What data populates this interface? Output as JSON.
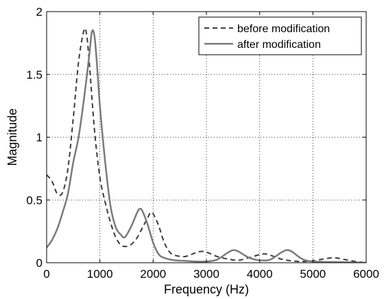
{
  "chart_data": {
    "type": "line",
    "title": "",
    "xlabel": "Frequency (Hz)",
    "ylabel": "Magnitude",
    "xlim": [
      0,
      6000
    ],
    "ylim": [
      0,
      2
    ],
    "xticks": [
      0,
      1000,
      2000,
      3000,
      4000,
      5000,
      6000
    ],
    "yticks": [
      0,
      0.5,
      1,
      1.5,
      2
    ],
    "xtick_labels": [
      "0",
      "1000",
      "2000",
      "3000",
      "4000",
      "5000",
      "6000"
    ],
    "ytick_labels": [
      "0",
      "0.5",
      "1",
      "1.5",
      "2"
    ],
    "grid": true,
    "legend_position": "top-right",
    "series": [
      {
        "name": "before modification",
        "style": "dashed",
        "color": "#3a3a3a",
        "points": [
          [
            0,
            0.7
          ],
          [
            100,
            0.65
          ],
          [
            200,
            0.55
          ],
          [
            300,
            0.56
          ],
          [
            400,
            0.75
          ],
          [
            500,
            1.15
          ],
          [
            600,
            1.6
          ],
          [
            700,
            1.85
          ],
          [
            750,
            1.82
          ],
          [
            800,
            1.6
          ],
          [
            900,
            1.05
          ],
          [
            1000,
            0.68
          ],
          [
            1100,
            0.48
          ],
          [
            1200,
            0.32
          ],
          [
            1300,
            0.2
          ],
          [
            1400,
            0.14
          ],
          [
            1500,
            0.13
          ],
          [
            1600,
            0.15
          ],
          [
            1700,
            0.2
          ],
          [
            1800,
            0.28
          ],
          [
            1900,
            0.36
          ],
          [
            1950,
            0.4
          ],
          [
            2000,
            0.39
          ],
          [
            2100,
            0.3
          ],
          [
            2200,
            0.17
          ],
          [
            2300,
            0.09
          ],
          [
            2400,
            0.06
          ],
          [
            2600,
            0.05
          ],
          [
            2800,
            0.08
          ],
          [
            2900,
            0.09
          ],
          [
            3000,
            0.085
          ],
          [
            3200,
            0.05
          ],
          [
            3400,
            0.03
          ],
          [
            3600,
            0.02
          ],
          [
            3800,
            0.04
          ],
          [
            4000,
            0.065
          ],
          [
            4100,
            0.07
          ],
          [
            4200,
            0.06
          ],
          [
            4400,
            0.03
          ],
          [
            4600,
            0.015
          ],
          [
            4800,
            0.01
          ],
          [
            5000,
            0.015
          ],
          [
            5200,
            0.03
          ],
          [
            5400,
            0.04
          ],
          [
            5600,
            0.025
          ],
          [
            5800,
            0.01
          ],
          [
            6000,
            0.0
          ]
        ]
      },
      {
        "name": "after modification",
        "style": "solid",
        "color": "#7a7a7a",
        "points": [
          [
            0,
            0.12
          ],
          [
            100,
            0.18
          ],
          [
            200,
            0.27
          ],
          [
            300,
            0.4
          ],
          [
            400,
            0.55
          ],
          [
            500,
            0.8
          ],
          [
            600,
            1.0
          ],
          [
            700,
            1.3
          ],
          [
            800,
            1.65
          ],
          [
            850,
            1.84
          ],
          [
            900,
            1.8
          ],
          [
            950,
            1.55
          ],
          [
            1000,
            1.25
          ],
          [
            1100,
            0.8
          ],
          [
            1200,
            0.45
          ],
          [
            1300,
            0.28
          ],
          [
            1400,
            0.22
          ],
          [
            1450,
            0.2
          ],
          [
            1500,
            0.22
          ],
          [
            1600,
            0.3
          ],
          [
            1700,
            0.4
          ],
          [
            1750,
            0.43
          ],
          [
            1800,
            0.41
          ],
          [
            1900,
            0.3
          ],
          [
            2000,
            0.16
          ],
          [
            2100,
            0.07
          ],
          [
            2200,
            0.04
          ],
          [
            2400,
            0.02
          ],
          [
            2600,
            0.015
          ],
          [
            2800,
            0.01
          ],
          [
            3000,
            0.01
          ],
          [
            3200,
            0.025
          ],
          [
            3400,
            0.08
          ],
          [
            3500,
            0.1
          ],
          [
            3600,
            0.09
          ],
          [
            3800,
            0.04
          ],
          [
            4000,
            0.02
          ],
          [
            4200,
            0.025
          ],
          [
            4400,
            0.08
          ],
          [
            4500,
            0.1
          ],
          [
            4600,
            0.09
          ],
          [
            4800,
            0.03
          ],
          [
            5000,
            0.01
          ],
          [
            5500,
            0.005
          ],
          [
            6000,
            0.0
          ]
        ]
      }
    ]
  }
}
